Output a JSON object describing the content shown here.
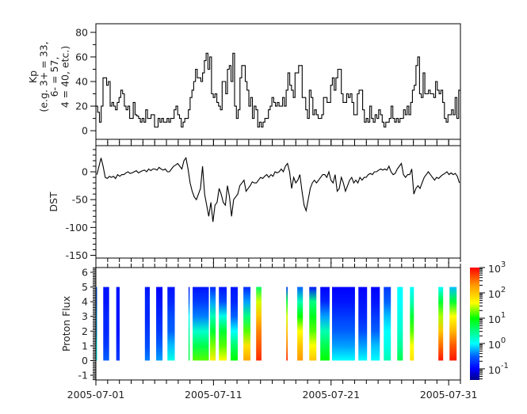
{
  "chart_data": [
    {
      "type": "line",
      "panel": "kp",
      "ylabel_lines": [
        "Kp",
        "(e.g. 3+ = 33,",
        "6- = 57,",
        "4 = 40, etc.)"
      ],
      "ylim": [
        -7,
        87
      ],
      "yticks": [
        0,
        20,
        40,
        60,
        80
      ],
      "yminor_step": 10,
      "xlim": [
        "2005-07-01",
        "2005-08-01"
      ],
      "line_style": "step",
      "color": "#000000",
      "values": [
        20,
        15,
        7,
        20,
        43,
        43,
        37,
        40,
        20,
        23,
        20,
        17,
        23,
        27,
        33,
        30,
        20,
        17,
        20,
        10,
        10,
        23,
        13,
        12,
        10,
        7,
        10,
        7,
        17,
        10,
        10,
        13,
        13,
        3,
        3,
        10,
        7,
        10,
        7,
        7,
        10,
        7,
        10,
        10,
        17,
        20,
        13,
        10,
        3,
        7,
        10,
        10,
        17,
        27,
        33,
        40,
        50,
        43,
        43,
        40,
        47,
        57,
        63,
        50,
        60,
        30,
        27,
        30,
        23,
        20,
        17,
        40,
        40,
        30,
        50,
        53,
        40,
        63,
        20,
        10,
        17,
        43,
        53,
        53,
        40,
        33,
        20,
        27,
        10,
        20,
        17,
        3,
        7,
        3,
        7,
        10,
        10,
        17,
        20,
        27,
        23,
        20,
        23,
        20,
        20,
        27,
        20,
        33,
        47,
        37,
        33,
        27,
        47,
        47,
        53,
        53,
        27,
        27,
        17,
        10,
        33,
        27,
        13,
        17,
        13,
        10,
        10,
        13,
        27,
        27,
        23,
        23,
        37,
        43,
        33,
        43,
        50,
        50,
        30,
        23,
        23,
        30,
        27,
        30,
        23,
        13,
        13,
        30,
        33,
        33,
        17,
        7,
        10,
        7,
        20,
        10,
        7,
        13,
        10,
        17,
        13,
        7,
        3,
        7,
        7,
        10,
        20,
        10,
        7,
        10,
        7,
        10,
        10,
        17,
        13,
        20,
        13,
        23,
        33,
        37,
        53,
        60,
        30,
        27,
        47,
        30,
        30,
        33,
        30,
        30,
        27,
        40,
        33,
        30,
        33,
        23,
        10,
        7,
        13,
        13,
        17,
        13,
        27,
        10,
        33
      ]
    },
    {
      "type": "line",
      "panel": "dst",
      "ylabel": "DST",
      "ylim": [
        -155,
        47
      ],
      "yticks": [
        0,
        -50,
        -100,
        -150
      ],
      "yminor_step": 10,
      "xlim": [
        "2005-07-01",
        "2005-08-01"
      ],
      "color": "#000000",
      "values": [
        -5,
        10,
        25,
        10,
        -10,
        -12,
        -8,
        -10,
        -8,
        -12,
        -5,
        -8,
        -5,
        -5,
        -2,
        0,
        -3,
        -2,
        0,
        2,
        -2,
        0,
        2,
        3,
        0,
        5,
        2,
        5,
        5,
        3,
        8,
        5,
        3,
        5,
        0,
        0,
        5,
        10,
        12,
        15,
        10,
        5,
        20,
        25,
        5,
        -20,
        -35,
        -45,
        -50,
        -40,
        -30,
        10,
        -40,
        -60,
        -80,
        -55,
        -90,
        -60,
        -55,
        -30,
        -40,
        -55,
        -60,
        -25,
        -45,
        -80,
        -50,
        -45,
        -40,
        -25,
        -20,
        -15,
        -35,
        -30,
        -25,
        -18,
        -20,
        -20,
        -15,
        -10,
        -12,
        -8,
        -5,
        -10,
        -5,
        -8,
        0,
        -2,
        0,
        5,
        0,
        10,
        15,
        0,
        -30,
        -10,
        -20,
        -15,
        -5,
        -35,
        -60,
        -70,
        -50,
        -30,
        -20,
        -15,
        -20,
        -15,
        -10,
        -5,
        -5,
        -10,
        0,
        -15,
        -20,
        -5,
        -35,
        -30,
        -10,
        -20,
        -35,
        -25,
        -15,
        -10,
        -20,
        -15,
        -20,
        -10,
        -15,
        -10,
        -10,
        -5,
        -3,
        -5,
        0,
        0,
        3,
        5,
        3,
        5,
        3,
        10,
        0,
        -5,
        -3,
        5,
        10,
        15,
        -5,
        -10,
        -5,
        -5,
        5,
        -40,
        -30,
        -25,
        -30,
        -20,
        -10,
        -5,
        0,
        -5,
        -10,
        -15,
        -10,
        -12,
        -8,
        -5,
        -3,
        0,
        -5,
        -2,
        -5,
        -3,
        -8,
        -20
      ]
    },
    {
      "type": "heatmap",
      "panel": "proton_flux",
      "ylabel": "Proton Flux",
      "ylim": [
        -1.32,
        6.32
      ],
      "yticks": [
        -1,
        0,
        1,
        2,
        3,
        4,
        5,
        6
      ],
      "yminor_step": 0.1,
      "channels": [
        5,
        4,
        3,
        2,
        1,
        0
      ],
      "xlim": [
        "2005-07-01",
        "2005-08-01"
      ],
      "xticks": [
        "2005-07-01",
        "2005-07-11",
        "2005-07-21",
        "2005-07-31"
      ],
      "xminor_step_days": 1,
      "colorbar": {
        "scale": "log",
        "range_log10": [
          -1.44,
          3
        ],
        "ticks": [
          {
            "base": "10",
            "exp": "3",
            "log": 3
          },
          {
            "base": "10",
            "exp": "2",
            "log": 2
          },
          {
            "base": "10",
            "exp": "1",
            "log": 1
          },
          {
            "base": "10",
            "exp": "0",
            "log": 0
          },
          {
            "base": "10",
            "exp": "-1",
            "log": -1
          }
        ],
        "colormap": [
          [
            -1.44,
            "#00008b"
          ],
          [
            -1.0,
            "#0000ff"
          ],
          [
            -0.5,
            "#0060ff"
          ],
          [
            0,
            "#00ffff"
          ],
          [
            0.5,
            "#00ff80"
          ],
          [
            1,
            "#00ff00"
          ],
          [
            1.6,
            "#ffff00"
          ],
          [
            2.3,
            "#ff9900"
          ],
          [
            3,
            "#ff0000"
          ]
        ]
      },
      "segments": [
        {
          "start": "2005-07-01T00:00",
          "end": "2005-07-01T02:24",
          "log_flux": [
            -0.5,
            -0.5,
            -0.3,
            -0.3,
            0,
            0
          ]
        },
        {
          "start": "2005-07-01T15:00",
          "end": "2005-07-02T03:00",
          "log_flux": [
            -0.9,
            -0.9,
            -0.8,
            -0.8,
            -0.7,
            -0.5
          ]
        },
        {
          "start": "2005-07-02T17:30",
          "end": "2005-07-03T00:30",
          "log_flux": [
            -0.9,
            -0.9,
            -0.9,
            -0.9,
            -0.8,
            -0.7
          ]
        },
        {
          "start": "2005-07-05T04:00",
          "end": "2005-07-05T14:00",
          "log_flux": [
            -0.9,
            -0.8,
            -0.8,
            -0.7,
            -0.6,
            -0.4
          ]
        },
        {
          "start": "2005-07-06T03:00",
          "end": "2005-07-06T16:00",
          "log_flux": [
            -1,
            -0.9,
            -0.8,
            -0.7,
            -0.5,
            -0.3
          ]
        },
        {
          "start": "2005-07-07T02:00",
          "end": "2005-07-07T17:00",
          "log_flux": [
            -0.9,
            -0.8,
            -0.6,
            -0.5,
            -0.2,
            0.1
          ]
        },
        {
          "start": "2005-07-08T21:00",
          "end": "2005-07-08T23:00",
          "log_flux": [
            -0.9,
            -0.5,
            0,
            0.3,
            0.6,
            0.8
          ]
        },
        {
          "start": "2005-07-09T05:30",
          "end": "2005-07-10T14:30",
          "log_flux": [
            -0.9,
            -0.7,
            -0.4,
            0.2,
            0.7,
            1.2
          ]
        },
        {
          "start": "2005-07-10T17:00",
          "end": "2005-07-11T04:30",
          "log_flux": [
            -0.8,
            -0.3,
            0.3,
            0.8,
            1.3,
            1.7
          ]
        },
        {
          "start": "2005-07-11T11:00",
          "end": "2005-07-12T03:00",
          "log_flux": [
            -0.9,
            -0.6,
            0.1,
            0.8,
            1.2,
            1.6
          ]
        },
        {
          "start": "2005-07-12T11:00",
          "end": "2005-07-13T01:30",
          "log_flux": [
            -0.9,
            -0.8,
            -0.5,
            0,
            0.6,
            1.0
          ]
        },
        {
          "start": "2005-07-13T13:00",
          "end": "2005-07-14T03:30",
          "log_flux": [
            -0.8,
            -0.3,
            0.5,
            1.2,
            1.8,
            2.2
          ]
        },
        {
          "start": "2005-07-14T15:00",
          "end": "2005-07-15T02:00",
          "log_flux": [
            0.6,
            1.5,
            2.0,
            2.4,
            2.6,
            2.8
          ]
        },
        {
          "start": "2005-07-17T04:30",
          "end": "2005-07-17T07:30",
          "log_flux": [
            -0.7,
            0.8,
            1.5,
            2.0,
            2.4,
            2.8
          ]
        },
        {
          "start": "2005-07-18T03:00",
          "end": "2005-07-18T14:30",
          "log_flux": [
            -0.5,
            0.3,
            1.0,
            1.6,
            2.0,
            2.3
          ]
        },
        {
          "start": "2005-07-19T03:30",
          "end": "2005-07-19T18:00",
          "log_flux": [
            -0.9,
            0.5,
            0.9,
            1.2,
            1.6,
            2.0
          ]
        },
        {
          "start": "2005-07-20T02:00",
          "end": "2005-07-20T21:00",
          "log_flux": [
            -1.0,
            -0.8,
            -0.3,
            0.3,
            0.7,
            1.0
          ]
        },
        {
          "start": "2005-07-21T02:00",
          "end": "2005-07-23T00:45",
          "log_flux": [
            -1.0,
            -0.9,
            -0.7,
            -0.5,
            -0.3,
            0
          ]
        },
        {
          "start": "2005-07-23T07:45",
          "end": "2005-07-24T01:30",
          "log_flux": [
            -1.0,
            -0.9,
            -0.8,
            -0.6,
            -0.3,
            0
          ]
        },
        {
          "start": "2005-07-24T09:30",
          "end": "2005-07-25T03:30",
          "log_flux": [
            -1.0,
            -0.9,
            -0.7,
            -0.5,
            -0.2,
            0
          ]
        },
        {
          "start": "2005-07-25T11:30",
          "end": "2005-07-26T02:00",
          "log_flux": [
            -0.7,
            -0.5,
            -0.2,
            0,
            0.1,
            0.3
          ]
        },
        {
          "start": "2005-07-26T15:00",
          "end": "2005-07-27T02:30",
          "log_flux": [
            0,
            0,
            0.1,
            0.2,
            0.4,
            0.7
          ]
        },
        {
          "start": "2005-07-27T17:00",
          "end": "2005-07-28T01:00",
          "log_flux": [
            0,
            0.3,
            0.8,
            1.2,
            1.6,
            1.8
          ]
        },
        {
          "start": "2005-07-30T03:00",
          "end": "2005-07-30T12:45",
          "log_flux": [
            0,
            0.8,
            1.4,
            2.0,
            2.5,
            2.9
          ]
        },
        {
          "start": "2005-07-31T01:45",
          "end": "2005-07-31T16:15",
          "log_flux": [
            -0.2,
            0.8,
            1.6,
            2.1,
            2.6,
            2.9
          ]
        }
      ]
    }
  ]
}
